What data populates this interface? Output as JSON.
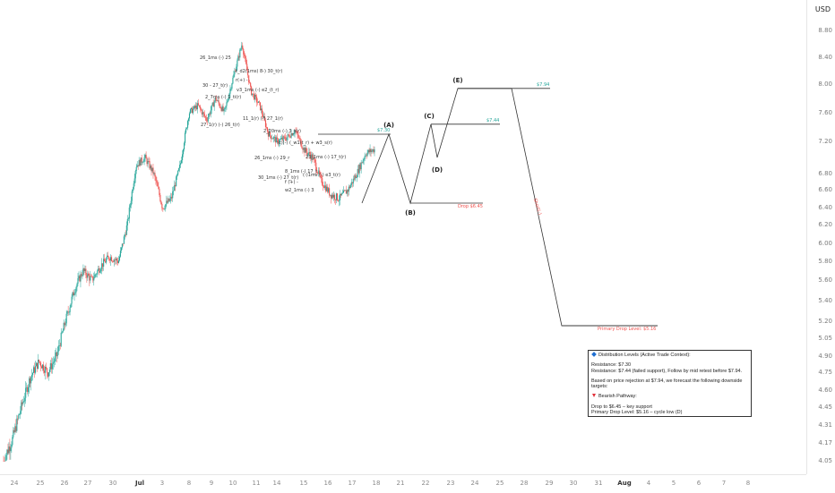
{
  "chart_data": {
    "type": "candlestick",
    "currency": "USD",
    "y_axis_ticks": [
      "8.80",
      "8.40",
      "8.00",
      "7.60",
      "7.20",
      "6.80",
      "6.60",
      "6.40",
      "6.20",
      "6.00",
      "5.80",
      "5.60",
      "5.40",
      "5.20",
      "5.05",
      "4.90",
      "4.75",
      "4.60",
      "4.45",
      "4.31",
      "4.17",
      "4.05"
    ],
    "x_axis_ticks": [
      {
        "label": "24",
        "bold": false
      },
      {
        "label": "25",
        "bold": false
      },
      {
        "label": "26",
        "bold": false
      },
      {
        "label": "27",
        "bold": false
      },
      {
        "label": "30",
        "bold": false
      },
      {
        "label": "Jul",
        "bold": true
      },
      {
        "label": "3",
        "bold": false
      },
      {
        "label": "8",
        "bold": false
      },
      {
        "label": "9",
        "bold": false
      },
      {
        "label": "10",
        "bold": false
      },
      {
        "label": "11",
        "bold": false
      },
      {
        "label": "14",
        "bold": false
      },
      {
        "label": "15",
        "bold": false
      },
      {
        "label": "16",
        "bold": false
      },
      {
        "label": "17",
        "bold": false
      },
      {
        "label": "18",
        "bold": false
      },
      {
        "label": "21",
        "bold": false
      },
      {
        "label": "22",
        "bold": false
      },
      {
        "label": "23",
        "bold": false
      },
      {
        "label": "24",
        "bold": false
      },
      {
        "label": "25",
        "bold": false
      },
      {
        "label": "28",
        "bold": false
      },
      {
        "label": "29",
        "bold": false
      },
      {
        "label": "30",
        "bold": false
      },
      {
        "label": "31",
        "bold": false
      },
      {
        "label": "Aug",
        "bold": true
      },
      {
        "label": "4",
        "bold": false
      },
      {
        "label": "5",
        "bold": false
      },
      {
        "label": "6",
        "bold": false
      },
      {
        "label": "7",
        "bold": false
      },
      {
        "label": "8",
        "bold": false
      }
    ],
    "price_path": [
      4.05,
      4.2,
      4.45,
      4.7,
      4.85,
      4.75,
      4.9,
      5.2,
      5.5,
      5.7,
      5.6,
      5.75,
      5.85,
      5.8,
      6.2,
      6.9,
      7.0,
      6.8,
      6.4,
      6.5,
      6.9,
      7.6,
      7.7,
      7.5,
      7.8,
      7.6,
      8.1,
      8.6,
      7.9,
      7.7,
      7.3,
      7.2,
      7.25,
      7.35,
      7.1,
      7.0,
      6.7,
      6.55,
      6.5,
      6.6,
      6.8,
      7.05,
      7.1
    ],
    "forecast_path_prices": [
      6.45,
      7.3,
      6.45,
      7.44,
      7.0,
      7.94,
      7.94,
      5.16,
      5.16
    ],
    "levels": [
      {
        "label": "$7.30",
        "price": 7.3,
        "color": "#26a69a"
      },
      {
        "label": "$7.44",
        "price": 7.44,
        "color": "#26a69a"
      },
      {
        "label": "$7.94",
        "price": 7.94,
        "color": "#26a69a"
      },
      {
        "label": "Drop $6.45",
        "price": 6.45,
        "color": "#ef5350"
      },
      {
        "label": "Primary Drop Level: $5.16",
        "price": 5.16,
        "color": "#ef5350"
      }
    ],
    "wave_labels": [
      "(A)",
      "(B)",
      "(C)",
      "(D)",
      "(E)"
    ],
    "annotations": [
      "26_1ms (-) 25",
      "30 - 27_t(r)",
      "2_7ms (-) 1_ti(r)",
      "27_1(r) (-) 26_t(r)",
      "t_d2(1ms) 8-) 30_t(r)",
      "r(+) -",
      "v3_1ms (-) e2_(t_r)",
      "11_1(r) (-) 27_1(r)",
      "2_20ms (-) 3_t(r)",
      "(c)(-) (_w1(t_r) + w3_s(r)",
      "26_1ms (-) 29_r",
      "23_1ms (-) 17_t(r)",
      "8_1ms (-) 17_t",
      "(-)1ms (-) e3_t(r)",
      "30_1ms (-) 27_t(r)",
      "f (+) -",
      "w2_1ms (-) 3"
    ],
    "diagonal_label": "Short(-)"
  },
  "info_box": {
    "header": "Distribution Levels (Active Trade Context):",
    "line1": "Resistance: $7.30",
    "line2": "Resistance: $7.44 (failed support), Follow by mid retest before $7.94.",
    "line3": "Based on price rejection at $7.94, we forecast the following downside targets:",
    "bearish_title": "Bearish Pathway:",
    "line4": "Drop to $6.45 – key support",
    "line5": "Primary Drop Level: $5.16 – cycle low (D)"
  },
  "colors": {
    "up": "#26a69a",
    "down": "#ef5350",
    "line": "#333333",
    "accent": "#1f6fd1"
  }
}
